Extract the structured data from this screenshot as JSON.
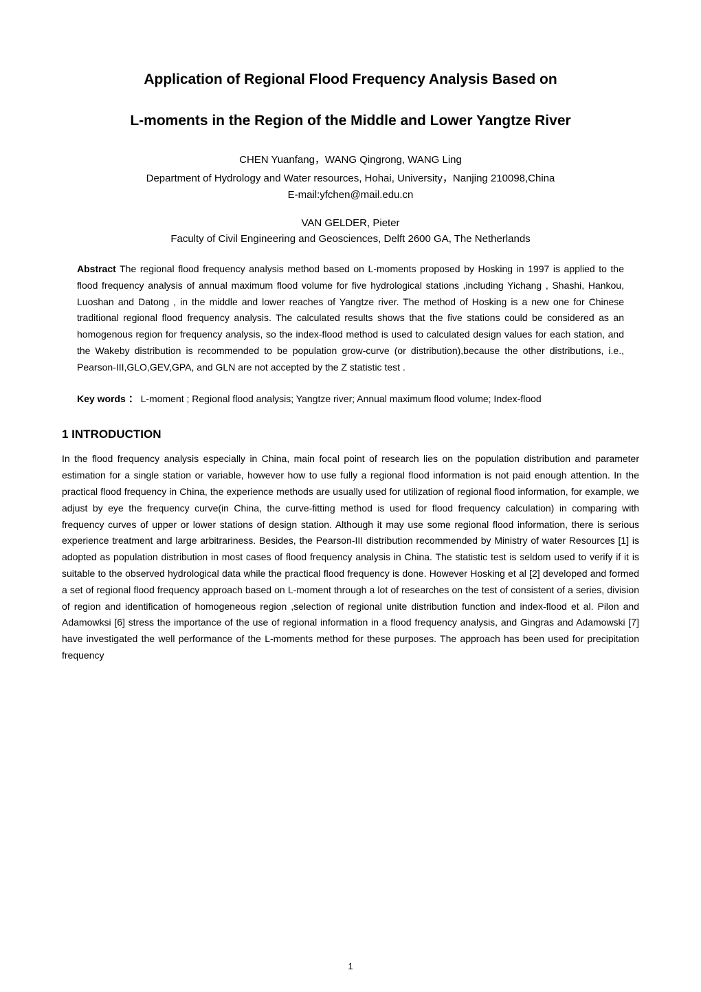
{
  "title": {
    "line1": "Application of Regional Flood Frequency Analysis Based on",
    "line2": "L-moments  in the Region of the Middle and Lower Yangtze River"
  },
  "authors": {
    "group1_names": "CHEN Yuanfang，WANG  Qingrong, WANG Ling",
    "group1_affiliation": "Department of Hydrology and Water resources, Hohai, University，Nanjing 210098,China",
    "group1_email": "E-mail:yfchen@mail.edu.cn",
    "group2_names": "VAN GELDER, Pieter",
    "group2_affiliation": "Faculty of Civil Engineering and Geosciences, Delft 2600 GA, The Netherlands"
  },
  "abstract": {
    "label": "Abstract",
    "text": " The regional flood frequency analysis method based on L-moments proposed by Hosking in 1997 is applied to the flood frequency analysis of annual maximum flood volume for five hydrological stations ,including Yichang , Shashi, Hankou, Luoshan and Datong , in the middle and lower reaches of Yangtze river. The method of Hosking is a new one for Chinese traditional regional flood frequency analysis. The calculated results shows that the five stations could be considered as an homogenous region for frequency analysis, so the index-flood method is used to calculated design values for each station, and the Wakeby distribution is recommended to be population grow-curve (or distribution),because the other distributions, i.e., Pearson-III,GLO,GEV,GPA, and GLN are not accepted by the Z statistic test ."
  },
  "keywords": {
    "label": "Key words ：",
    "text": "  L-moment ; Regional flood analysis; Yangtze river; Annual maximum flood volume; Index-flood"
  },
  "section1": {
    "heading": "1  INTRODUCTION",
    "body": "In the flood frequency analysis especially in China, main focal point of research lies on the population distribution and parameter estimation for a single station or variable, however how to use fully a regional flood information is not paid enough attention. In the practical flood frequency in China, the experience methods are usually used for utilization of regional flood information, for example, we adjust by eye the frequency curve(in China, the curve-fitting method is used for flood frequency calculation) in comparing with frequency curves of upper or lower stations of design station. Although it may use some regional flood information, there is serious experience treatment and large arbitrariness. Besides, the Pearson-III distribution recommended by Ministry of water Resources [1] is adopted as population distribution in most cases of flood frequency analysis in China. The statistic test is seldom used to verify if it is suitable to the observed hydrological data while the practical flood frequency is done. However Hosking et al [2] developed and formed a set of regional flood frequency approach based on L-moment through a lot of researches on the test of consistent of a series, division of region and identification of homogeneous region ,selection of regional unite distribution function and index-flood et al. Pilon and Adamowksi [6] stress the importance of the use of regional information in a flood frequency analysis, and Gingras and Adamowski [7] have investigated the well performance of the L-moments method for these purposes. The approach has been used for precipitation frequency"
  },
  "page_number": "1"
}
